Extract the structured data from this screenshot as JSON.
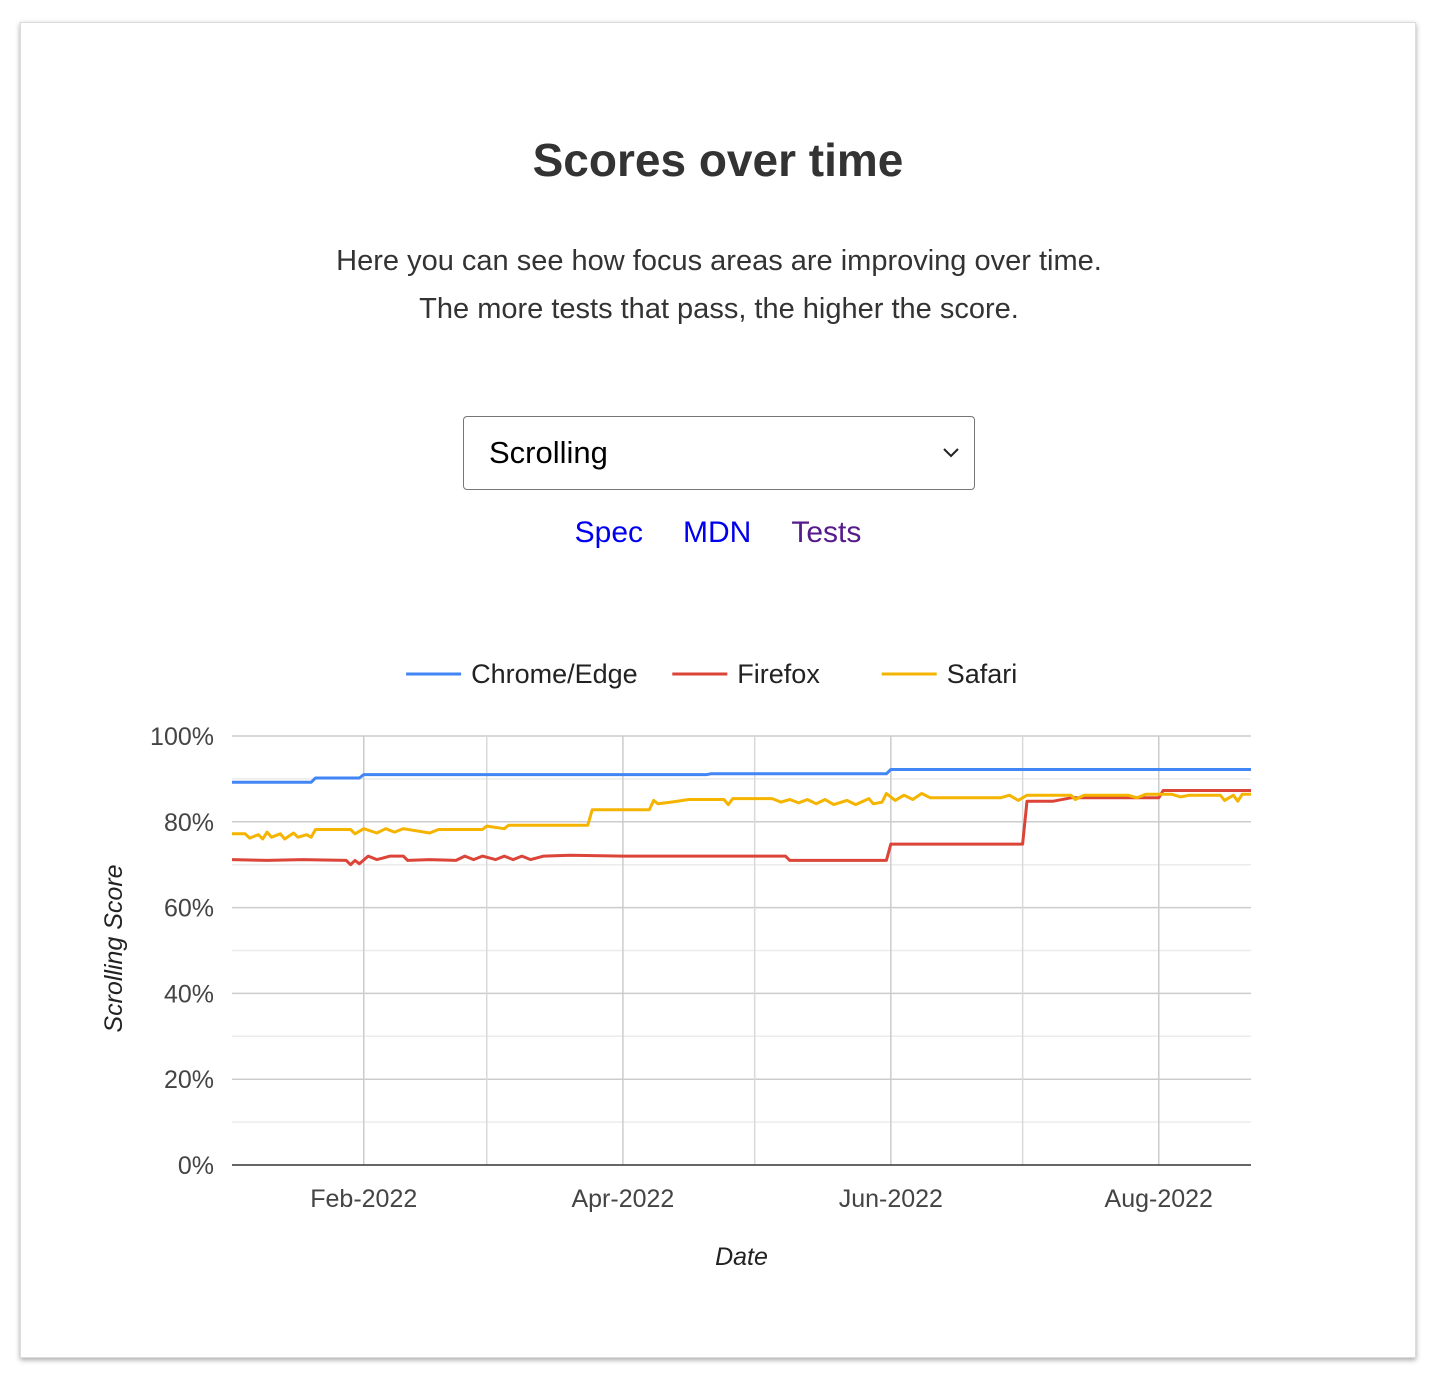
{
  "section": {
    "title": "Scores over time",
    "description": "Here you can see how focus areas are improving over time. The more tests that pass, the higher the score."
  },
  "focus_select": {
    "selected": "Scrolling"
  },
  "links": [
    {
      "label": "Spec",
      "visited": false
    },
    {
      "label": "MDN",
      "visited": false
    },
    {
      "label": "Tests",
      "visited": true
    }
  ],
  "chart_data": {
    "type": "line",
    "title": "",
    "xlabel": "Date",
    "ylabel": "Scrolling Score",
    "ylim": [
      0,
      100
    ],
    "y_ticks": [
      "0%",
      "20%",
      "40%",
      "60%",
      "80%",
      "100%"
    ],
    "x_ticks": [
      {
        "date": "2022-02-01",
        "label": "Feb-2022"
      },
      {
        "date": "2022-04-01",
        "label": "Apr-2022"
      },
      {
        "date": "2022-06-01",
        "label": "Jun-2022"
      },
      {
        "date": "2022-08-01",
        "label": "Aug-2022"
      }
    ],
    "x_range": [
      "2022-01-02",
      "2022-08-22"
    ],
    "grid": true,
    "legend_position": "top",
    "series": [
      {
        "name": "Chrome/Edge",
        "color": "#4285f4",
        "points": [
          [
            "2022-01-02",
            89.2
          ],
          [
            "2022-01-20",
            89.2
          ],
          [
            "2022-01-21",
            90.2
          ],
          [
            "2022-01-31",
            90.2
          ],
          [
            "2022-02-01",
            91.0
          ],
          [
            "2022-04-20",
            91.0
          ],
          [
            "2022-04-21",
            91.2
          ],
          [
            "2022-05-31",
            91.2
          ],
          [
            "2022-06-01",
            92.2
          ],
          [
            "2022-08-22",
            92.2
          ]
        ]
      },
      {
        "name": "Firefox",
        "color": "#db4437",
        "points": [
          [
            "2022-01-02",
            71.2
          ],
          [
            "2022-01-10",
            71.0
          ],
          [
            "2022-01-18",
            71.2
          ],
          [
            "2022-01-28",
            71.0
          ],
          [
            "2022-01-29",
            70.0
          ],
          [
            "2022-01-30",
            71.0
          ],
          [
            "2022-01-31",
            70.2
          ],
          [
            "2022-02-02",
            72.0
          ],
          [
            "2022-02-04",
            71.2
          ],
          [
            "2022-02-07",
            72.0
          ],
          [
            "2022-02-10",
            72.0
          ],
          [
            "2022-02-11",
            71.0
          ],
          [
            "2022-02-16",
            71.2
          ],
          [
            "2022-02-22",
            71.0
          ],
          [
            "2022-02-24",
            72.0
          ],
          [
            "2022-02-26",
            71.2
          ],
          [
            "2022-02-28",
            72.0
          ],
          [
            "2022-03-03",
            71.2
          ],
          [
            "2022-03-05",
            72.0
          ],
          [
            "2022-03-07",
            71.2
          ],
          [
            "2022-03-09",
            72.0
          ],
          [
            "2022-03-11",
            71.2
          ],
          [
            "2022-03-14",
            72.0
          ],
          [
            "2022-03-20",
            72.2
          ],
          [
            "2022-04-01",
            72.0
          ],
          [
            "2022-04-20",
            72.0
          ],
          [
            "2022-05-08",
            72.0
          ],
          [
            "2022-05-09",
            71.0
          ],
          [
            "2022-05-31",
            71.0
          ],
          [
            "2022-06-01",
            74.8
          ],
          [
            "2022-07-01",
            74.8
          ],
          [
            "2022-07-02",
            84.8
          ],
          [
            "2022-07-08",
            84.8
          ],
          [
            "2022-07-12",
            85.6
          ],
          [
            "2022-07-31",
            85.6
          ],
          [
            "2022-08-01",
            85.6
          ],
          [
            "2022-08-02",
            87.3
          ],
          [
            "2022-08-22",
            87.3
          ]
        ]
      },
      {
        "name": "Safari",
        "color": "#f4b400",
        "points": [
          [
            "2022-01-02",
            77.2
          ],
          [
            "2022-01-05",
            77.2
          ],
          [
            "2022-01-06",
            76.2
          ],
          [
            "2022-01-08",
            77.0
          ],
          [
            "2022-01-09",
            76.0
          ],
          [
            "2022-01-10",
            77.6
          ],
          [
            "2022-01-11",
            76.4
          ],
          [
            "2022-01-13",
            77.2
          ],
          [
            "2022-01-14",
            76.0
          ],
          [
            "2022-01-16",
            77.4
          ],
          [
            "2022-01-17",
            76.4
          ],
          [
            "2022-01-19",
            77.0
          ],
          [
            "2022-01-20",
            76.4
          ],
          [
            "2022-01-21",
            78.2
          ],
          [
            "2022-01-29",
            78.2
          ],
          [
            "2022-01-30",
            77.2
          ],
          [
            "2022-02-01",
            78.4
          ],
          [
            "2022-02-04",
            77.4
          ],
          [
            "2022-02-06",
            78.4
          ],
          [
            "2022-02-08",
            77.6
          ],
          [
            "2022-02-10",
            78.4
          ],
          [
            "2022-02-16",
            77.4
          ],
          [
            "2022-02-18",
            78.2
          ],
          [
            "2022-02-28",
            78.2
          ],
          [
            "2022-03-01",
            79.0
          ],
          [
            "2022-03-05",
            78.4
          ],
          [
            "2022-03-06",
            79.2
          ],
          [
            "2022-03-24",
            79.2
          ],
          [
            "2022-03-25",
            82.8
          ],
          [
            "2022-04-07",
            82.8
          ],
          [
            "2022-04-08",
            85.0
          ],
          [
            "2022-04-09",
            84.2
          ],
          [
            "2022-04-12",
            84.6
          ],
          [
            "2022-04-16",
            85.2
          ],
          [
            "2022-04-24",
            85.2
          ],
          [
            "2022-04-25",
            84.0
          ],
          [
            "2022-04-26",
            85.4
          ],
          [
            "2022-05-05",
            85.4
          ],
          [
            "2022-05-07",
            84.6
          ],
          [
            "2022-05-09",
            85.2
          ],
          [
            "2022-05-11",
            84.4
          ],
          [
            "2022-05-13",
            85.2
          ],
          [
            "2022-05-15",
            84.2
          ],
          [
            "2022-05-17",
            85.2
          ],
          [
            "2022-05-19",
            84.0
          ],
          [
            "2022-05-22",
            85.0
          ],
          [
            "2022-05-24",
            84.0
          ],
          [
            "2022-05-27",
            85.4
          ],
          [
            "2022-05-28",
            84.2
          ],
          [
            "2022-05-30",
            84.6
          ],
          [
            "2022-05-31",
            86.6
          ],
          [
            "2022-06-02",
            85.0
          ],
          [
            "2022-06-04",
            86.2
          ],
          [
            "2022-06-06",
            85.2
          ],
          [
            "2022-06-08",
            86.6
          ],
          [
            "2022-06-10",
            85.6
          ],
          [
            "2022-06-26",
            85.6
          ],
          [
            "2022-06-28",
            86.2
          ],
          [
            "2022-06-30",
            85.0
          ],
          [
            "2022-07-02",
            86.2
          ],
          [
            "2022-07-12",
            86.2
          ],
          [
            "2022-07-13",
            85.2
          ],
          [
            "2022-07-15",
            86.2
          ],
          [
            "2022-07-25",
            86.2
          ],
          [
            "2022-07-27",
            85.6
          ],
          [
            "2022-07-29",
            86.4
          ],
          [
            "2022-08-04",
            86.4
          ],
          [
            "2022-08-06",
            85.8
          ],
          [
            "2022-08-08",
            86.2
          ],
          [
            "2022-08-15",
            86.2
          ],
          [
            "2022-08-16",
            85.0
          ],
          [
            "2022-08-18",
            86.2
          ],
          [
            "2022-08-19",
            84.8
          ],
          [
            "2022-08-20",
            86.4
          ],
          [
            "2022-08-22",
            86.4
          ]
        ]
      }
    ]
  }
}
